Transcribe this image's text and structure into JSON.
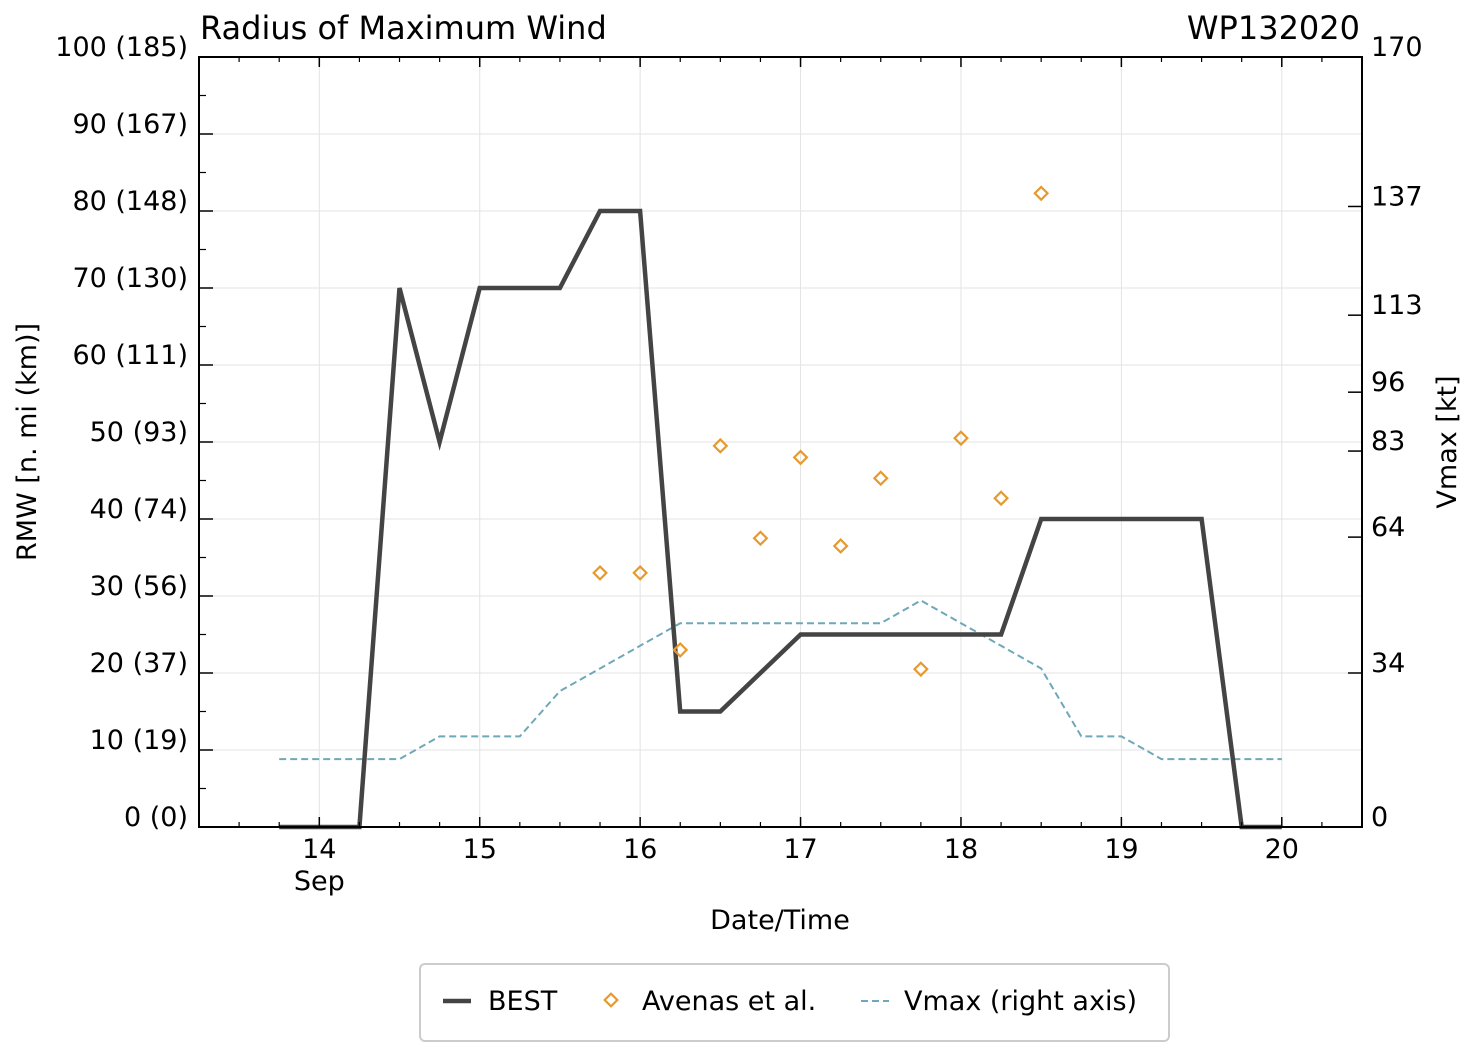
{
  "chart_data": {
    "type": "line",
    "title": "Radius of Maximum Wind",
    "storm_id": "WP132020",
    "xlabel": "Date/Time",
    "ylabel": "RMW [n. mi (km)]",
    "ylabel_right": "Vmax [kt]",
    "xlim": [
      13.25,
      20.5
    ],
    "ylim": [
      0,
      100
    ],
    "ylim_right": [
      0,
      170
    ],
    "x_ticks": [
      {
        "value": 14,
        "label": "14",
        "sublabel": "Sep"
      },
      {
        "value": 15,
        "label": "15",
        "sublabel": ""
      },
      {
        "value": 16,
        "label": "16",
        "sublabel": ""
      },
      {
        "value": 17,
        "label": "17",
        "sublabel": ""
      },
      {
        "value": 18,
        "label": "18",
        "sublabel": ""
      },
      {
        "value": 19,
        "label": "19",
        "sublabel": ""
      },
      {
        "value": 20,
        "label": "20",
        "sublabel": ""
      }
    ],
    "y_ticks": [
      {
        "value": 0,
        "label": "0 (0)"
      },
      {
        "value": 10,
        "label": "10 (19)"
      },
      {
        "value": 20,
        "label": "20 (37)"
      },
      {
        "value": 30,
        "label": "30 (56)"
      },
      {
        "value": 40,
        "label": "40 (74)"
      },
      {
        "value": 50,
        "label": "50 (93)"
      },
      {
        "value": 60,
        "label": "60 (111)"
      },
      {
        "value": 70,
        "label": "70 (130)"
      },
      {
        "value": 80,
        "label": "80 (148)"
      },
      {
        "value": 90,
        "label": "90 (167)"
      },
      {
        "value": 100,
        "label": "100 (185)"
      }
    ],
    "y_ticks_right": [
      {
        "value": 0,
        "label": "0"
      },
      {
        "value": 34,
        "label": "34"
      },
      {
        "value": 64,
        "label": "64"
      },
      {
        "value": 83,
        "label": "83"
      },
      {
        "value": 96,
        "label": "96"
      },
      {
        "value": 113,
        "label": "113"
      },
      {
        "value": 137,
        "label": "137"
      },
      {
        "value": 170,
        "label": "170"
      }
    ],
    "grid": true,
    "legend_position": "bottom-center",
    "series": [
      {
        "name": "BEST",
        "kind": "line",
        "axis": "left",
        "color": "#444444",
        "x": [
          13.75,
          14.0,
          14.25,
          14.5,
          14.75,
          15.0,
          15.25,
          15.5,
          15.75,
          16.0,
          16.25,
          16.5,
          16.75,
          17.0,
          17.25,
          17.5,
          17.75,
          18.0,
          18.25,
          18.5,
          18.75,
          19.0,
          19.25,
          19.5,
          19.75,
          20.0
        ],
        "y": [
          0,
          0,
          0,
          70,
          50,
          70,
          70,
          70,
          80,
          80,
          15,
          15,
          20,
          25,
          25,
          25,
          25,
          25,
          25,
          40,
          40,
          40,
          40,
          40,
          0,
          0
        ]
      },
      {
        "name": "Avenas et al.",
        "kind": "scatter",
        "axis": "left",
        "color": "#e69a2e",
        "x": [
          15.75,
          16.0,
          16.25,
          16.5,
          16.75,
          17.0,
          17.25,
          17.5,
          17.75,
          18.0,
          18.25,
          18.5
        ],
        "y": [
          33,
          33,
          23,
          49.5,
          37.5,
          48,
          36.5,
          45.3,
          20.5,
          50.5,
          42.7,
          82.3
        ]
      },
      {
        "name": "Vmax (right axis)",
        "kind": "dashed-line",
        "axis": "right",
        "color": "#6fa8b8",
        "x": [
          13.75,
          14.0,
          14.25,
          14.5,
          14.75,
          15.0,
          15.25,
          15.5,
          15.75,
          16.0,
          16.25,
          16.5,
          16.75,
          17.0,
          17.25,
          17.5,
          17.75,
          18.0,
          18.25,
          18.5,
          18.75,
          19.0,
          19.25,
          19.5,
          19.75,
          20.0
        ],
        "y": [
          15,
          15,
          15,
          15,
          20,
          20,
          20,
          30,
          35,
          40,
          45,
          45,
          45,
          45,
          45,
          45,
          50,
          45,
          40,
          35,
          20,
          20,
          15,
          15,
          15,
          15
        ]
      }
    ]
  }
}
